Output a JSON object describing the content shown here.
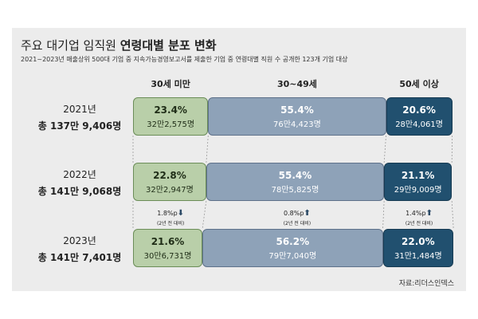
{
  "header": {
    "title_plain": "주요 대기업 임직원",
    "title_bold": "연령대별 분포 변화",
    "subtitle": "2021~2023년 매출상위 500대 기업 중 지속가능경영보고서를 제출한 기업 중 연령대별 직원 수 공개한 123개 기업 대상"
  },
  "colors": {
    "under30": "#b9cfa9",
    "age30_49": "#8ea2b8",
    "over50": "#21506f",
    "down": "#2b4a66",
    "up": "#2b4a66"
  },
  "chart_data": {
    "type": "bar",
    "stacked": "100%",
    "categories": [
      "2021년",
      "2022년",
      "2023년"
    ],
    "series": [
      {
        "name": "30세 미만",
        "values": [
          23.4,
          22.8,
          21.6
        ],
        "counts": [
          "32만2,575명",
          "32만2,947명",
          "30만6,731명"
        ]
      },
      {
        "name": "30~49세",
        "values": [
          55.4,
          55.4,
          56.2
        ],
        "counts": [
          "76만4,423명",
          "78만5,825명",
          "79만7,040명"
        ]
      },
      {
        "name": "50세 이상",
        "values": [
          20.6,
          21.1,
          22.0
        ],
        "counts": [
          "28만4,061명",
          "29만9,009명",
          "31만1,484명"
        ]
      }
    ],
    "totals": [
      "총 137만 9,406명",
      "총 141만 9,068명",
      "총 141만 7,401명"
    ],
    "changes": [
      {
        "value": "1.8%p",
        "direction": "down",
        "note": "(2년 전 대비)"
      },
      {
        "value": "0.8%p",
        "direction": "up",
        "note": "(2년 전 대비)"
      },
      {
        "value": "1.4%p",
        "direction": "up",
        "note": "(2년 전 대비)"
      }
    ],
    "unit": "%"
  },
  "source": "자료:리더스인덱스"
}
